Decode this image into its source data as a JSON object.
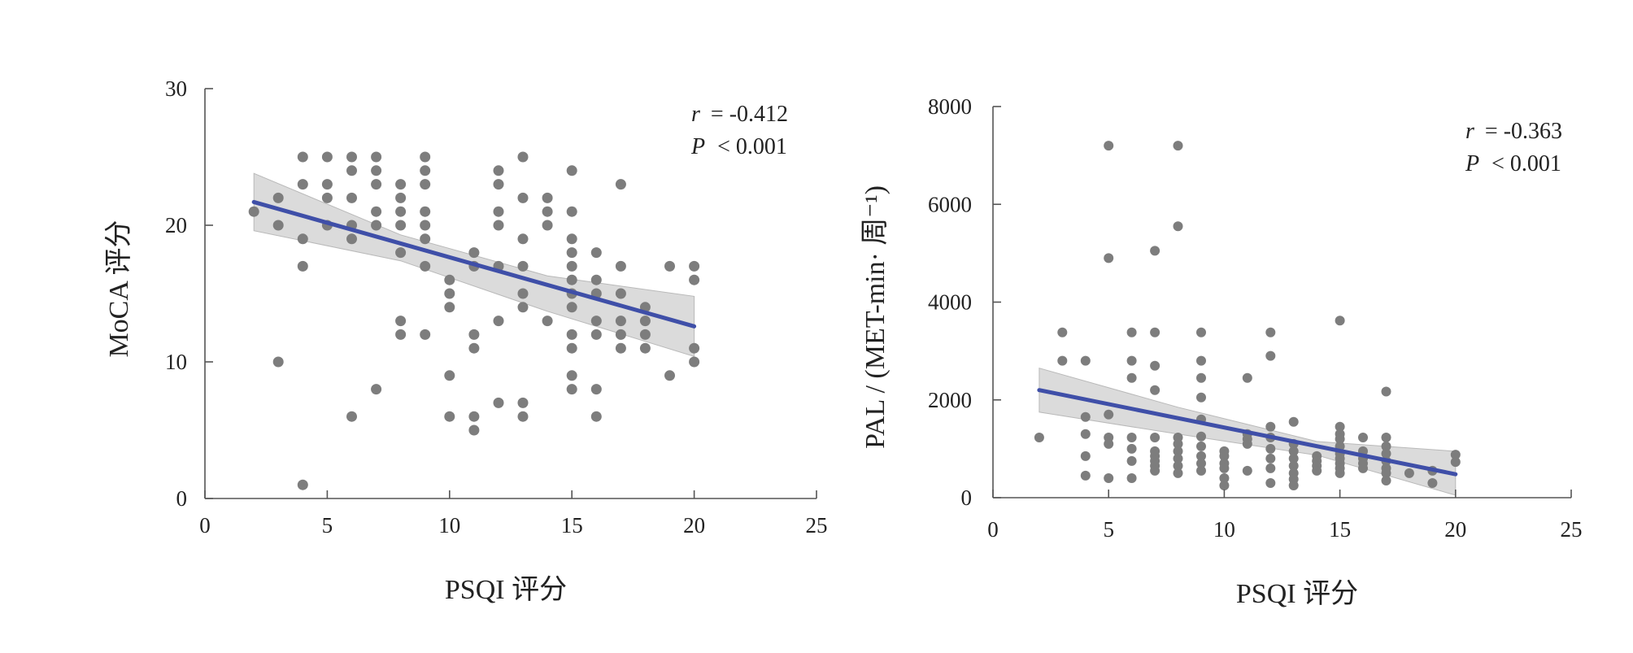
{
  "chart_data": [
    {
      "type": "scatter",
      "xlabel": "PSQI 评分",
      "ylabel": "MoCA 评分",
      "xlim": [
        0,
        25
      ],
      "ylim": [
        0,
        30
      ],
      "xticks": [
        0,
        5,
        10,
        15,
        20,
        25
      ],
      "yticks": [
        0,
        10,
        20,
        30
      ],
      "grid": false,
      "annotation": {
        "r_symbol": "r",
        "r_value": "= -0.412",
        "p_symbol": "P",
        "p_value": "< 0.001"
      },
      "fit_line": {
        "x": [
          2,
          20
        ],
        "y": [
          21.7,
          12.6
        ]
      },
      "confidence_band": {
        "x": [
          2,
          8,
          14,
          20
        ],
        "upper": [
          23.8,
          19.3,
          16.3,
          14.8
        ],
        "lower": [
          19.6,
          17.4,
          13.7,
          10.4
        ]
      },
      "colors": {
        "points": "#7d7d7d",
        "fit": "#3f4fa8",
        "band": "#cfcfcf"
      },
      "points": [
        [
          2,
          21
        ],
        [
          3,
          22
        ],
        [
          3,
          20
        ],
        [
          3,
          10
        ],
        [
          4,
          25
        ],
        [
          4,
          23
        ],
        [
          4,
          19
        ],
        [
          4,
          17
        ],
        [
          4,
          1
        ],
        [
          5,
          25
        ],
        [
          5,
          23
        ],
        [
          5,
          22
        ],
        [
          5,
          20
        ],
        [
          6,
          25
        ],
        [
          6,
          24
        ],
        [
          6,
          22
        ],
        [
          6,
          20
        ],
        [
          6,
          19
        ],
        [
          6,
          6
        ],
        [
          7,
          25
        ],
        [
          7,
          24
        ],
        [
          7,
          23
        ],
        [
          7,
          21
        ],
        [
          7,
          20
        ],
        [
          7,
          8
        ],
        [
          8,
          23
        ],
        [
          8,
          22
        ],
        [
          8,
          21
        ],
        [
          8,
          20
        ],
        [
          8,
          18
        ],
        [
          8,
          13
        ],
        [
          8,
          12
        ],
        [
          9,
          25
        ],
        [
          9,
          24
        ],
        [
          9,
          23
        ],
        [
          9,
          21
        ],
        [
          9,
          20
        ],
        [
          9,
          19
        ],
        [
          9,
          17
        ],
        [
          9,
          12
        ],
        [
          10,
          16
        ],
        [
          10,
          15
        ],
        [
          10,
          14
        ],
        [
          10,
          9
        ],
        [
          10,
          6
        ],
        [
          11,
          18
        ],
        [
          11,
          17
        ],
        [
          11,
          12
        ],
        [
          11,
          11
        ],
        [
          11,
          6
        ],
        [
          11,
          5
        ],
        [
          12,
          24
        ],
        [
          12,
          23
        ],
        [
          12,
          21
        ],
        [
          12,
          20
        ],
        [
          12,
          17
        ],
        [
          12,
          13
        ],
        [
          12,
          7
        ],
        [
          13,
          25
        ],
        [
          13,
          22
        ],
        [
          13,
          19
        ],
        [
          13,
          17
        ],
        [
          13,
          15
        ],
        [
          13,
          14
        ],
        [
          13,
          7
        ],
        [
          13,
          6
        ],
        [
          14,
          22
        ],
        [
          14,
          21
        ],
        [
          14,
          20
        ],
        [
          14,
          13
        ],
        [
          15,
          24
        ],
        [
          15,
          21
        ],
        [
          15,
          19
        ],
        [
          15,
          18
        ],
        [
          15,
          17
        ],
        [
          15,
          16
        ],
        [
          15,
          15
        ],
        [
          15,
          14
        ],
        [
          15,
          12
        ],
        [
          15,
          11
        ],
        [
          15,
          9
        ],
        [
          15,
          8
        ],
        [
          16,
          18
        ],
        [
          16,
          16
        ],
        [
          16,
          15
        ],
        [
          16,
          13
        ],
        [
          16,
          12
        ],
        [
          16,
          8
        ],
        [
          16,
          6
        ],
        [
          17,
          23
        ],
        [
          17,
          17
        ],
        [
          17,
          15
        ],
        [
          17,
          13
        ],
        [
          17,
          12
        ],
        [
          17,
          11
        ],
        [
          18,
          14
        ],
        [
          18,
          13
        ],
        [
          18,
          12
        ],
        [
          18,
          11
        ],
        [
          19,
          17
        ],
        [
          19,
          9
        ],
        [
          20,
          17
        ],
        [
          20,
          16
        ],
        [
          20,
          11
        ],
        [
          20,
          10
        ]
      ]
    },
    {
      "type": "scatter",
      "xlabel": "PSQI 评分",
      "ylabel": "PAL / (MET-min· 周⁻¹)",
      "xlim": [
        0,
        25
      ],
      "ylim": [
        0,
        8000
      ],
      "xticks": [
        0,
        5,
        10,
        15,
        20,
        25
      ],
      "yticks": [
        0,
        2000,
        4000,
        6000,
        8000
      ],
      "grid": false,
      "annotation": {
        "r_symbol": "r",
        "r_value": "= -0.363",
        "p_symbol": "P",
        "p_value": "< 0.001"
      },
      "fit_line": {
        "x": [
          2,
          20
        ],
        "y": [
          2200,
          480
        ]
      },
      "confidence_band": {
        "x": [
          2,
          8,
          14,
          20
        ],
        "upper": [
          2650,
          1850,
          1150,
          950
        ],
        "lower": [
          1750,
          1300,
          870,
          50
        ]
      },
      "colors": {
        "points": "#7d7d7d",
        "fit": "#3f4fa8",
        "band": "#cfcfcf"
      },
      "points": [
        [
          2,
          1230
        ],
        [
          3,
          3380
        ],
        [
          3,
          2800
        ],
        [
          4,
          2800
        ],
        [
          4,
          1650
        ],
        [
          4,
          1300
        ],
        [
          4,
          850
        ],
        [
          4,
          450
        ],
        [
          5,
          7200
        ],
        [
          5,
          4900
        ],
        [
          5,
          1700
        ],
        [
          5,
          1230
        ],
        [
          5,
          1100
        ],
        [
          5,
          400
        ],
        [
          6,
          3380
        ],
        [
          6,
          2800
        ],
        [
          6,
          2450
        ],
        [
          6,
          1230
        ],
        [
          6,
          1000
        ],
        [
          6,
          750
        ],
        [
          6,
          400
        ],
        [
          7,
          5050
        ],
        [
          7,
          3380
        ],
        [
          7,
          2700
        ],
        [
          7,
          2200
        ],
        [
          7,
          1230
        ],
        [
          7,
          950
        ],
        [
          7,
          850
        ],
        [
          7,
          750
        ],
        [
          7,
          650
        ],
        [
          7,
          550
        ],
        [
          8,
          7200
        ],
        [
          8,
          5550
        ],
        [
          8,
          1230
        ],
        [
          8,
          1100
        ],
        [
          8,
          950
        ],
        [
          8,
          800
        ],
        [
          8,
          650
        ],
        [
          8,
          500
        ],
        [
          9,
          3380
        ],
        [
          9,
          2800
        ],
        [
          9,
          2450
        ],
        [
          9,
          2050
        ],
        [
          9,
          1600
        ],
        [
          9,
          1250
        ],
        [
          9,
          1050
        ],
        [
          9,
          850
        ],
        [
          9,
          700
        ],
        [
          9,
          550
        ],
        [
          10,
          950
        ],
        [
          10,
          850
        ],
        [
          10,
          700
        ],
        [
          10,
          600
        ],
        [
          10,
          400
        ],
        [
          10,
          250
        ],
        [
          11,
          2450
        ],
        [
          11,
          1300
        ],
        [
          11,
          1200
        ],
        [
          11,
          1100
        ],
        [
          11,
          550
        ],
        [
          12,
          3380
        ],
        [
          12,
          2900
        ],
        [
          12,
          1450
        ],
        [
          12,
          1230
        ],
        [
          12,
          1000
        ],
        [
          12,
          800
        ],
        [
          12,
          600
        ],
        [
          12,
          300
        ],
        [
          13,
          1550
        ],
        [
          13,
          1100
        ],
        [
          13,
          950
        ],
        [
          13,
          800
        ],
        [
          13,
          650
        ],
        [
          13,
          500
        ],
        [
          13,
          380
        ],
        [
          13,
          250
        ],
        [
          14,
          850
        ],
        [
          14,
          750
        ],
        [
          14,
          650
        ],
        [
          14,
          550
        ],
        [
          15,
          3620
        ],
        [
          15,
          1450
        ],
        [
          15,
          1300
        ],
        [
          15,
          1200
        ],
        [
          15,
          1050
        ],
        [
          15,
          900
        ],
        [
          15,
          800
        ],
        [
          15,
          700
        ],
        [
          15,
          600
        ],
        [
          15,
          500
        ],
        [
          16,
          1230
        ],
        [
          16,
          950
        ],
        [
          16,
          800
        ],
        [
          16,
          700
        ],
        [
          16,
          600
        ],
        [
          17,
          2170
        ],
        [
          17,
          1230
        ],
        [
          17,
          1050
        ],
        [
          17,
          900
        ],
        [
          17,
          750
        ],
        [
          17,
          600
        ],
        [
          17,
          500
        ],
        [
          17,
          350
        ],
        [
          18,
          500
        ],
        [
          19,
          550
        ],
        [
          19,
          300
        ],
        [
          20,
          880
        ],
        [
          20,
          730
        ]
      ]
    }
  ]
}
